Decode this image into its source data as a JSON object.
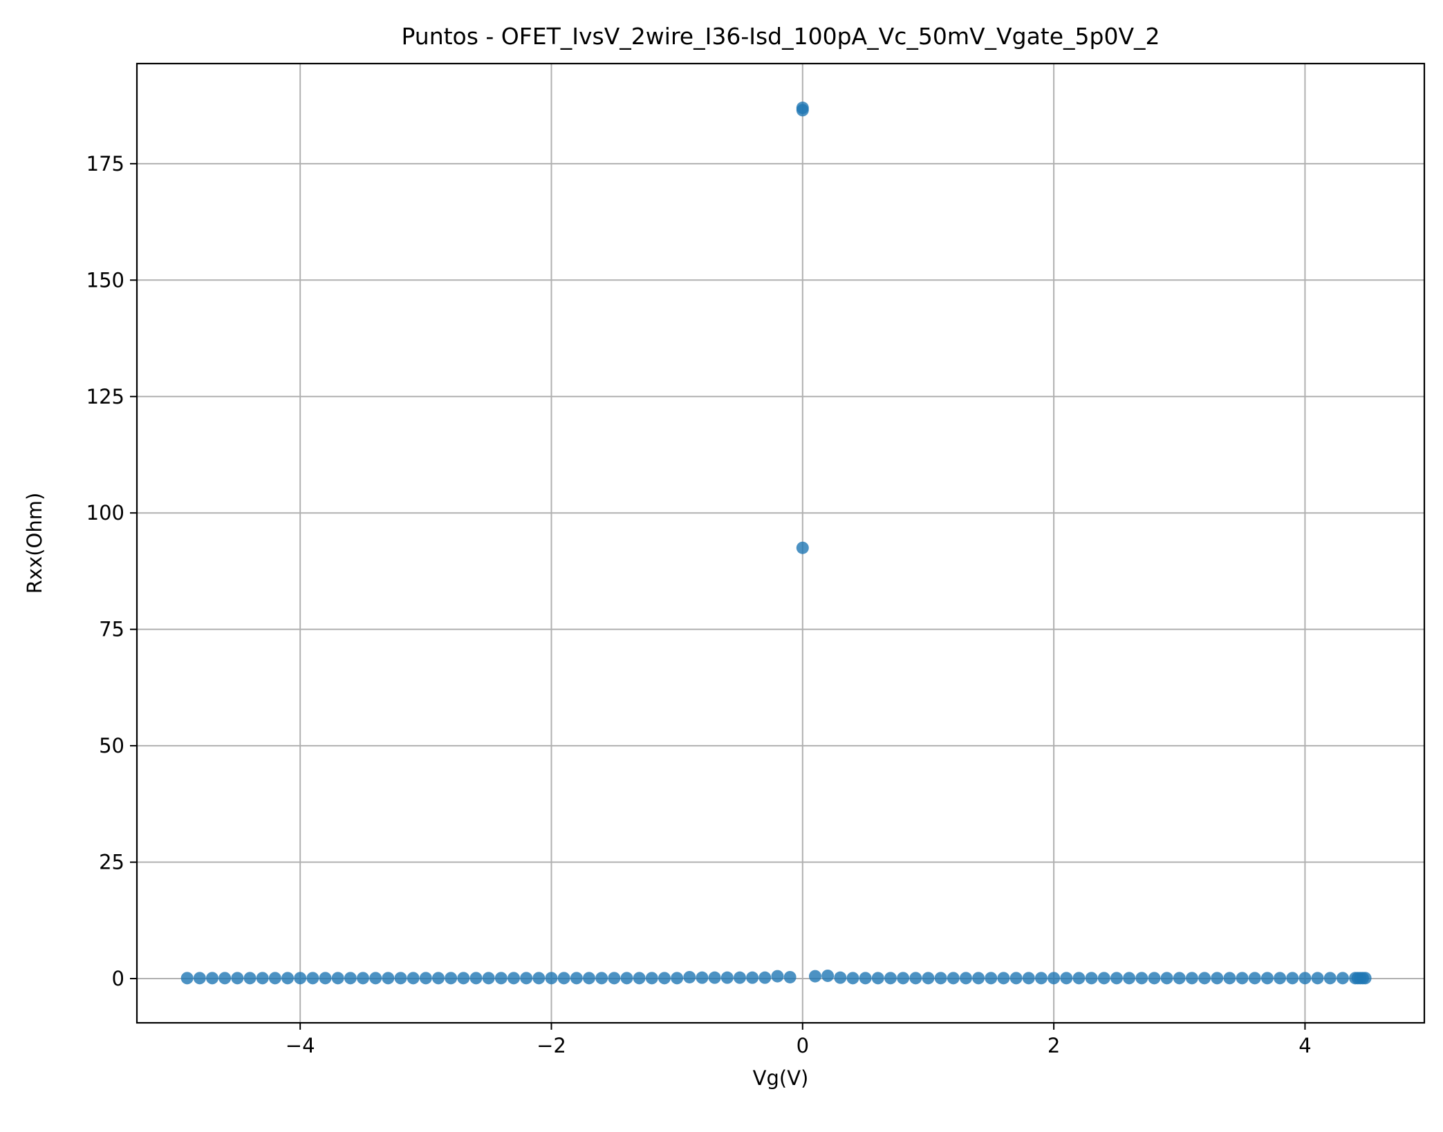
{
  "chart_data": {
    "type": "scatter",
    "title": "Puntos - OFET_IvsV_2wire_I36-Isd_100pA_Vc_50mV_Vgate_5p0V_2",
    "xlabel": "Vg(V)",
    "ylabel": "Rxx(Ohm)",
    "xlim": [
      -5.3,
      4.95
    ],
    "ylim": [
      -9.5,
      196.5
    ],
    "xticks": [
      -4,
      -2,
      0,
      2,
      4
    ],
    "xtick_labels": [
      "−4",
      "−2",
      "0",
      "2",
      "4"
    ],
    "yticks": [
      0,
      25,
      50,
      75,
      100,
      125,
      150,
      175
    ],
    "ytick_labels": [
      "0",
      "25",
      "50",
      "75",
      "100",
      "125",
      "150",
      "175"
    ],
    "grid": true,
    "legend": "none",
    "marker_color": "#1f77b4",
    "series": [
      {
        "x": [
          -4.9,
          -4.8,
          -4.7,
          -4.6,
          -4.5,
          -4.4,
          -4.3,
          -4.2,
          -4.1,
          -4.0,
          -3.9,
          -3.8,
          -3.7,
          -3.6,
          -3.5,
          -3.4,
          -3.3,
          -3.2,
          -3.1,
          -3.0,
          -2.9,
          -2.8,
          -2.7,
          -2.6,
          -2.5,
          -2.4,
          -2.3,
          -2.2,
          -2.1,
          -2.0,
          -1.9,
          -1.8,
          -1.7,
          -1.6,
          -1.5,
          -1.4,
          -1.3,
          -1.2,
          -1.1,
          -1.0,
          -0.9,
          -0.8,
          -0.7,
          -0.6,
          -0.5,
          -0.4,
          -0.3,
          -0.2,
          -0.1,
          0.0,
          0.0,
          0.0,
          0.1,
          0.2,
          0.3,
          0.4,
          0.5,
          0.6,
          0.7,
          0.8,
          0.9,
          1.0,
          1.1,
          1.2,
          1.3,
          1.4,
          1.5,
          1.6,
          1.7,
          1.8,
          1.9,
          2.0,
          2.1,
          2.2,
          2.3,
          2.4,
          2.5,
          2.6,
          2.7,
          2.8,
          2.9,
          3.0,
          3.1,
          3.2,
          3.3,
          3.4,
          3.5,
          3.6,
          3.7,
          3.8,
          3.9,
          4.0,
          4.1,
          4.2,
          4.3,
          4.4,
          4.42,
          4.44,
          4.46,
          4.48
        ],
        "y": [
          0.1,
          0.1,
          0.1,
          0.1,
          0.1,
          0.1,
          0.1,
          0.1,
          0.1,
          0.1,
          0.1,
          0.1,
          0.1,
          0.1,
          0.1,
          0.1,
          0.1,
          0.1,
          0.1,
          0.1,
          0.1,
          0.1,
          0.1,
          0.1,
          0.1,
          0.1,
          0.1,
          0.1,
          0.1,
          0.1,
          0.1,
          0.1,
          0.1,
          0.1,
          0.1,
          0.1,
          0.1,
          0.1,
          0.1,
          0.1,
          0.3,
          0.2,
          0.2,
          0.2,
          0.2,
          0.2,
          0.2,
          0.5,
          0.3,
          186.5,
          187.0,
          92.5,
          0.5,
          0.6,
          0.2,
          0.1,
          0.1,
          0.1,
          0.1,
          0.1,
          0.1,
          0.1,
          0.1,
          0.1,
          0.1,
          0.1,
          0.1,
          0.1,
          0.1,
          0.1,
          0.1,
          0.1,
          0.1,
          0.1,
          0.1,
          0.1,
          0.1,
          0.1,
          0.1,
          0.1,
          0.1,
          0.1,
          0.1,
          0.1,
          0.1,
          0.1,
          0.1,
          0.1,
          0.1,
          0.1,
          0.1,
          0.1,
          0.1,
          0.1,
          0.1,
          0.1,
          0.1,
          0.1,
          0.1,
          0.1
        ]
      }
    ]
  }
}
